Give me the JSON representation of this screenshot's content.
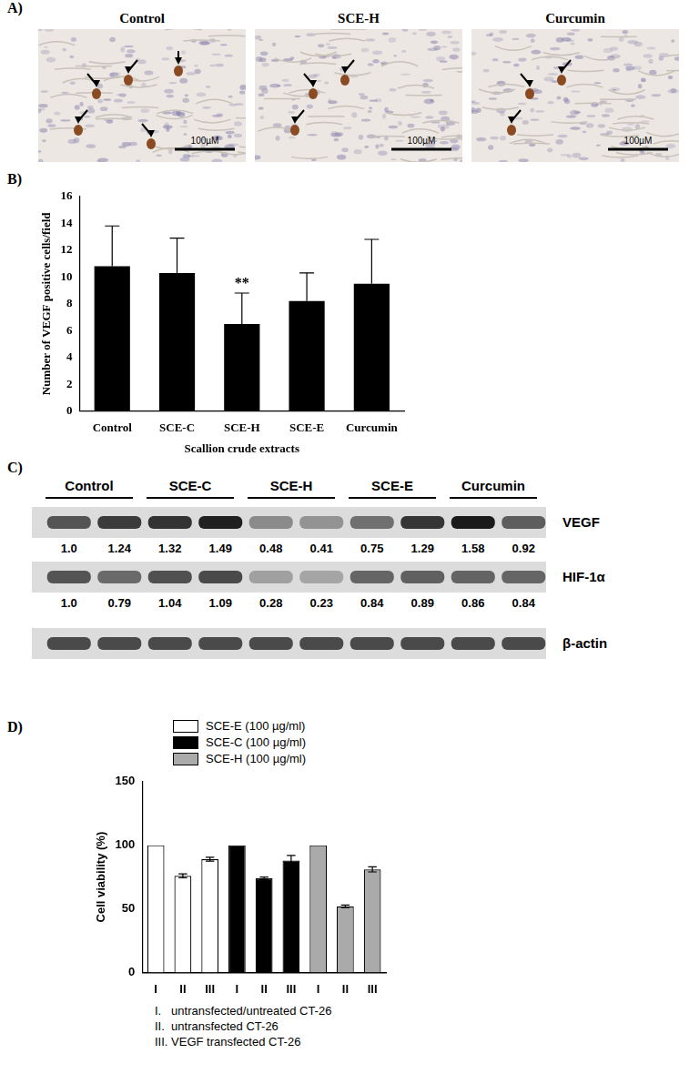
{
  "panel_labels": [
    "A)",
    "B)",
    "C)",
    "D)"
  ],
  "panel_a": {
    "images": [
      {
        "title": "Control",
        "scale_bar": "100µM",
        "arrows": 5
      },
      {
        "title": "SCE-H",
        "scale_bar": "100µM",
        "arrows": 3
      },
      {
        "title": "Curcumin",
        "scale_bar": "100µM",
        "arrows": 3
      }
    ]
  },
  "chart_data": [
    {
      "type": "bar",
      "categories": [
        "Control",
        "SCE-C",
        "SCE-H",
        "SCE-E",
        "Curcumin"
      ],
      "values": [
        10.8,
        10.3,
        6.5,
        8.2,
        9.5
      ],
      "errors": [
        3.0,
        2.6,
        2.3,
        2.1,
        3.3
      ],
      "color": "#000000",
      "ylim": [
        0,
        16
      ],
      "yticks": [
        0,
        2,
        4,
        6,
        8,
        10,
        12,
        14,
        16
      ],
      "ylabel": "Number of VEGF positive cells/field",
      "xlabel": "Scallion crude extracts",
      "annotations": [
        {
          "category": "SCE-H",
          "text": "**"
        }
      ],
      "grid": false
    },
    {
      "type": "bar",
      "categories": [
        "I",
        "II",
        "III",
        "I",
        "II",
        "III",
        "I",
        "II",
        "III"
      ],
      "series": [
        {
          "name": "SCE-E (100 µg/ml)",
          "color": "#ffffff",
          "values": [
            100,
            76,
            89,
            null,
            null,
            null,
            null,
            null,
            null
          ],
          "errors": [
            0,
            1.5,
            1.5,
            null,
            null,
            null,
            null,
            null,
            null
          ]
        },
        {
          "name": "SCE-C (100 µg/ml)",
          "color": "#000000",
          "values": [
            null,
            null,
            null,
            100,
            74,
            88,
            null,
            null,
            null
          ],
          "errors": [
            null,
            null,
            null,
            0,
            1,
            4,
            null,
            null,
            null
          ]
        },
        {
          "name": "SCE-H (100 µg/ml)",
          "color": "#aaaaaa",
          "values": [
            null,
            null,
            null,
            null,
            null,
            null,
            100,
            52,
            81
          ],
          "errors": [
            null,
            null,
            null,
            null,
            null,
            null,
            0,
            1,
            2
          ]
        }
      ],
      "ylim": [
        0,
        150
      ],
      "yticks": [
        0,
        50,
        100,
        150
      ],
      "ylabel": "Cell viability (%)",
      "legend": "top-left",
      "grid": false,
      "footnotes": [
        "I.   untransfected/untreated CT-26",
        "II.  untransfected CT-26",
        "III. VEGF transfected CT-26"
      ]
    }
  ],
  "panel_c": {
    "groups": [
      "Control",
      "SCE-C",
      "SCE-H",
      "SCE-E",
      "Curcumin"
    ],
    "lanes_per_group": 2,
    "rows": [
      {
        "name": "VEGF",
        "values": [
          "1.0",
          "1.24",
          "1.32",
          "1.49",
          "0.48",
          "0.41",
          "0.75",
          "1.29",
          "1.58",
          "0.92"
        ]
      },
      {
        "name": "HIF-1α",
        "values": [
          "1.0",
          "0.79",
          "1.04",
          "1.09",
          "0.28",
          "0.23",
          "0.84",
          "0.89",
          "0.86",
          "0.84"
        ]
      },
      {
        "name": "β-actin"
      }
    ]
  }
}
